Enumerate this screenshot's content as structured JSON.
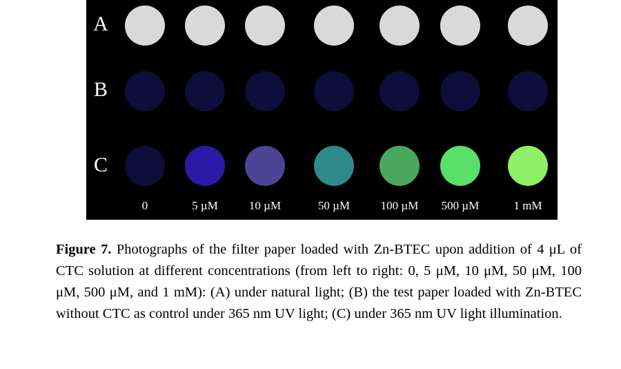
{
  "rows": [
    {
      "label": "A",
      "colors": [
        "#d9d9d9",
        "#d9d9d9",
        "#d9d9d9",
        "#d9d9d9",
        "#d9d9d9",
        "#d9d9d9",
        "#d9d9d9"
      ]
    },
    {
      "label": "B",
      "colors": [
        "#0f0d3a",
        "#0f0d3a",
        "#0f0d3a",
        "#0f0d3a",
        "#0f0d3a",
        "#0f0d3a",
        "#0f0d3a"
      ]
    },
    {
      "label": "C",
      "colors": [
        "#0f0d3a",
        "#2c1aa6",
        "#4d4496",
        "#2f8a8c",
        "#4aa85e",
        "#58e06a",
        "#8ef066"
      ]
    }
  ],
  "concentrations": [
    "0",
    "5 µM",
    "10 µM",
    "50 µM",
    "100 µM",
    "500 µM",
    "1 mM"
  ],
  "caption": {
    "figure_label": "Figure 7.",
    "text": " Photographs of the filter paper loaded with Zn-BTEC upon addition of 4 μL of CTC solution at different concentrations (from left to right: 0, 5 μM, 10 μM, 50 μM, 100 μM, 500 μM, and 1 mM): (A) under natural light; (B) the test paper loaded with Zn-BTEC without CTC as control under 365 nm UV light; (C) under 365 nm UV light illumination."
  }
}
